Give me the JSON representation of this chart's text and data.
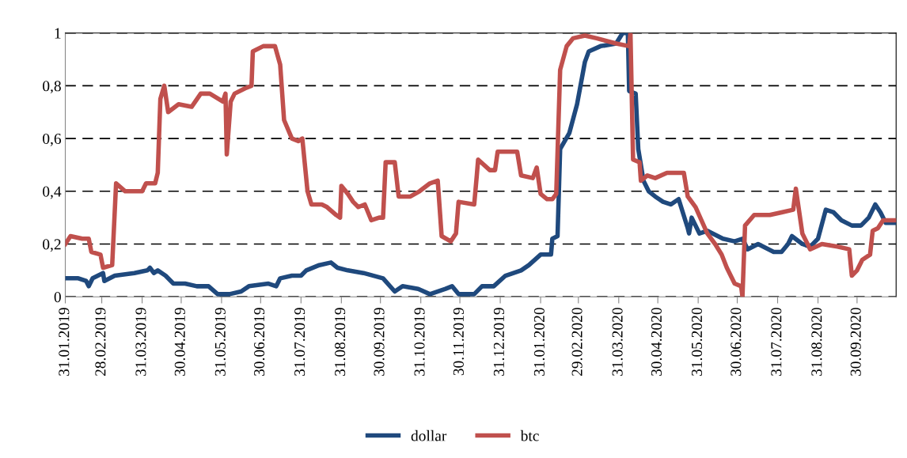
{
  "chart_data": {
    "type": "line",
    "xlim": [
      "2019-01-31",
      "2020-10-30"
    ],
    "xticks": [
      {
        "value": "2019-01-31",
        "label": "31.01.2019"
      },
      {
        "value": "2019-02-28",
        "label": "28.02.2019"
      },
      {
        "value": "2019-03-31",
        "label": "31.03.2019"
      },
      {
        "value": "2019-04-30",
        "label": "30.04.2019"
      },
      {
        "value": "2019-05-31",
        "label": "31.05.2019"
      },
      {
        "value": "2019-06-30",
        "label": "30.06.2019"
      },
      {
        "value": "2019-07-31",
        "label": "31.07.2019"
      },
      {
        "value": "2019-08-31",
        "label": "31.08.2019"
      },
      {
        "value": "2019-09-30",
        "label": "30.09.2019"
      },
      {
        "value": "2019-10-31",
        "label": "31.10.2019"
      },
      {
        "value": "2019-11-30",
        "label": "30.11.2019"
      },
      {
        "value": "2019-12-31",
        "label": "31.12.2019"
      },
      {
        "value": "2020-01-31",
        "label": "31.01.2020"
      },
      {
        "value": "2020-02-29",
        "label": "29.02.2020"
      },
      {
        "value": "2020-03-31",
        "label": "31.03.2020"
      },
      {
        "value": "2020-04-30",
        "label": "30.04.2020"
      },
      {
        "value": "2020-05-31",
        "label": "31.05.2020"
      },
      {
        "value": "2020-06-30",
        "label": "30.06.2020"
      },
      {
        "value": "2020-07-31",
        "label": "31.07.2020"
      },
      {
        "value": "2020-08-31",
        "label": "31.08.2020"
      },
      {
        "value": "2020-09-30",
        "label": "30.09.2020"
      }
    ],
    "ylim": [
      0,
      1
    ],
    "yticks": [
      0,
      {
        "value": 0.2,
        "label": "0,2"
      },
      {
        "value": 0.4,
        "label": "0,4"
      },
      {
        "value": 0.6,
        "label": "0,6"
      },
      {
        "value": 0.8,
        "label": "0,8"
      },
      1
    ],
    "grid": "y",
    "legend": "bottom",
    "line_style": "solid",
    "marker": "none",
    "series": [
      {
        "name": "dollar",
        "color": "#1f497d",
        "x": [
          "2019-01-31",
          "2019-02-10",
          "2019-02-16",
          "2019-02-18",
          "2019-02-21",
          "2019-03-01",
          "2019-03-02",
          "2019-03-10",
          "2019-03-25",
          "2019-04-04",
          "2019-04-06",
          "2019-04-09",
          "2019-04-12",
          "2019-04-18",
          "2019-04-24",
          "2019-05-03",
          "2019-05-12",
          "2019-05-21",
          "2019-05-28",
          "2019-06-06",
          "2019-06-15",
          "2019-06-21",
          "2019-07-06",
          "2019-07-12",
          "2019-07-15",
          "2019-07-24",
          "2019-07-31",
          "2019-08-04",
          "2019-08-14",
          "2019-08-23",
          "2019-08-28",
          "2019-09-05",
          "2019-09-17",
          "2019-10-02",
          "2019-10-11",
          "2019-10-17",
          "2019-10-29",
          "2019-11-07",
          "2019-11-19",
          "2019-11-24",
          "2019-11-29",
          "2019-12-11",
          "2019-12-17",
          "2019-12-26",
          "2020-01-04",
          "2020-01-16",
          "2020-01-22",
          "2020-01-31",
          "2020-02-08",
          "2020-02-09",
          "2020-02-13",
          "2020-02-15",
          "2020-02-22",
          "2020-02-28",
          "2020-03-05",
          "2020-03-08",
          "2020-03-17",
          "2020-03-29",
          "2020-04-03",
          "2020-04-07",
          "2020-04-08",
          "2020-04-13",
          "2020-04-15",
          "2020-04-19",
          "2020-04-23",
          "2020-04-28",
          "2020-05-04",
          "2020-05-10",
          "2020-05-16",
          "2020-05-23",
          "2020-05-24",
          "2020-05-26",
          "2020-06-01",
          "2020-06-07",
          "2020-06-19",
          "2020-06-28",
          "2020-07-04",
          "2020-07-08",
          "2020-07-16",
          "2020-07-28",
          "2020-08-03",
          "2020-08-08",
          "2020-08-11",
          "2020-08-19",
          "2020-08-25",
          "2020-08-31",
          "2020-09-06",
          "2020-09-12",
          "2020-09-18",
          "2020-09-26",
          "2020-10-03",
          "2020-10-09",
          "2020-10-14",
          "2020-10-18",
          "2020-10-22",
          "2020-10-29"
        ],
        "values": [
          0.07,
          0.07,
          0.06,
          0.04,
          0.07,
          0.09,
          0.06,
          0.08,
          0.09,
          0.1,
          0.11,
          0.09,
          0.1,
          0.08,
          0.05,
          0.05,
          0.04,
          0.04,
          0.01,
          0.01,
          0.02,
          0.04,
          0.05,
          0.04,
          0.07,
          0.08,
          0.08,
          0.1,
          0.12,
          0.13,
          0.11,
          0.1,
          0.09,
          0.07,
          0.02,
          0.04,
          0.03,
          0.01,
          0.03,
          0.04,
          0.01,
          0.01,
          0.04,
          0.04,
          0.08,
          0.1,
          0.12,
          0.16,
          0.16,
          0.22,
          0.23,
          0.56,
          0.62,
          0.73,
          0.89,
          0.93,
          0.95,
          0.96,
          1.0,
          1.0,
          0.78,
          0.77,
          0.56,
          0.44,
          0.4,
          0.38,
          0.36,
          0.35,
          0.37,
          0.26,
          0.24,
          0.3,
          0.24,
          0.25,
          0.22,
          0.21,
          0.22,
          0.18,
          0.2,
          0.17,
          0.17,
          0.2,
          0.23,
          0.2,
          0.19,
          0.22,
          0.33,
          0.32,
          0.29,
          0.27,
          0.27,
          0.3,
          0.35,
          0.32,
          0.28,
          0.28
        ]
      },
      {
        "name": "btc",
        "color": "#c0504d",
        "x": [
          "2019-01-31",
          "2019-02-04",
          "2019-02-13",
          "2019-02-18",
          "2019-02-20",
          "2019-02-27",
          "2019-03-01",
          "2019-03-08",
          "2019-03-11",
          "2019-03-18",
          "2019-03-22",
          "2019-03-31",
          "2019-04-03",
          "2019-04-10",
          "2019-04-12",
          "2019-04-14",
          "2019-04-17",
          "2019-04-20",
          "2019-04-28",
          "2019-05-08",
          "2019-05-15",
          "2019-05-22",
          "2019-06-01",
          "2019-06-03",
          "2019-06-04",
          "2019-06-07",
          "2019-06-10",
          "2019-06-18",
          "2019-06-23",
          "2019-06-24",
          "2019-07-02",
          "2019-07-11",
          "2019-07-15",
          "2019-07-18",
          "2019-07-24",
          "2019-07-29",
          "2019-08-01",
          "2019-08-05",
          "2019-08-08",
          "2019-08-16",
          "2019-08-20",
          "2019-08-27",
          "2019-08-30",
          "2019-08-31",
          "2019-09-05",
          "2019-09-09",
          "2019-09-13",
          "2019-09-18",
          "2019-09-23",
          "2019-09-29",
          "2019-10-02",
          "2019-10-04",
          "2019-10-11",
          "2019-10-14",
          "2019-10-23",
          "2019-10-30",
          "2019-11-07",
          "2019-11-13",
          "2019-11-16",
          "2019-11-23",
          "2019-11-27",
          "2019-11-29",
          "2019-12-11",
          "2019-12-13",
          "2019-12-14",
          "2019-12-23",
          "2019-12-27",
          "2019-12-29",
          "2020-01-13",
          "2020-01-16",
          "2020-01-25",
          "2020-01-28",
          "2020-01-31",
          "2020-02-05",
          "2020-02-09",
          "2020-02-12",
          "2020-02-15",
          "2020-02-20",
          "2020-02-25",
          "2020-03-05",
          "2020-03-14",
          "2020-03-29",
          "2020-04-08",
          "2020-04-09",
          "2020-04-11",
          "2020-04-16",
          "2020-04-17",
          "2020-04-22",
          "2020-04-28",
          "2020-05-07",
          "2020-05-20",
          "2020-05-23",
          "2020-05-29",
          "2020-06-07",
          "2020-06-13",
          "2020-06-18",
          "2020-06-22",
          "2020-06-28",
          "2020-07-03",
          "2020-07-04",
          "2020-07-06",
          "2020-07-13",
          "2020-07-25",
          "2020-08-03",
          "2020-08-12",
          "2020-08-14",
          "2020-08-19",
          "2020-08-25",
          "2020-09-03",
          "2020-09-15",
          "2020-09-24",
          "2020-09-26",
          "2020-09-30",
          "2020-10-04",
          "2020-10-10",
          "2020-10-12",
          "2020-10-16",
          "2020-10-20",
          "2020-10-29"
        ],
        "values": [
          0.2,
          0.23,
          0.22,
          0.22,
          0.17,
          0.16,
          0.11,
          0.12,
          0.43,
          0.4,
          0.4,
          0.4,
          0.43,
          0.43,
          0.47,
          0.75,
          0.8,
          0.7,
          0.73,
          0.72,
          0.77,
          0.77,
          0.74,
          0.77,
          0.54,
          0.74,
          0.77,
          0.79,
          0.8,
          0.93,
          0.95,
          0.95,
          0.88,
          0.67,
          0.6,
          0.59,
          0.6,
          0.4,
          0.35,
          0.35,
          0.34,
          0.31,
          0.3,
          0.42,
          0.39,
          0.36,
          0.34,
          0.35,
          0.29,
          0.3,
          0.3,
          0.51,
          0.51,
          0.38,
          0.38,
          0.4,
          0.43,
          0.44,
          0.23,
          0.21,
          0.24,
          0.36,
          0.35,
          0.46,
          0.52,
          0.48,
          0.48,
          0.55,
          0.55,
          0.46,
          0.45,
          0.49,
          0.39,
          0.37,
          0.37,
          0.39,
          0.86,
          0.95,
          0.98,
          0.99,
          0.98,
          0.96,
          0.95,
          1.0,
          0.52,
          0.51,
          0.44,
          0.46,
          0.45,
          0.47,
          0.47,
          0.38,
          0.34,
          0.24,
          0.2,
          0.16,
          0.11,
          0.05,
          0.04,
          0.0,
          0.27,
          0.31,
          0.31,
          0.32,
          0.33,
          0.41,
          0.24,
          0.18,
          0.2,
          0.19,
          0.18,
          0.08,
          0.1,
          0.14,
          0.16,
          0.25,
          0.26,
          0.29,
          0.29
        ]
      }
    ]
  }
}
